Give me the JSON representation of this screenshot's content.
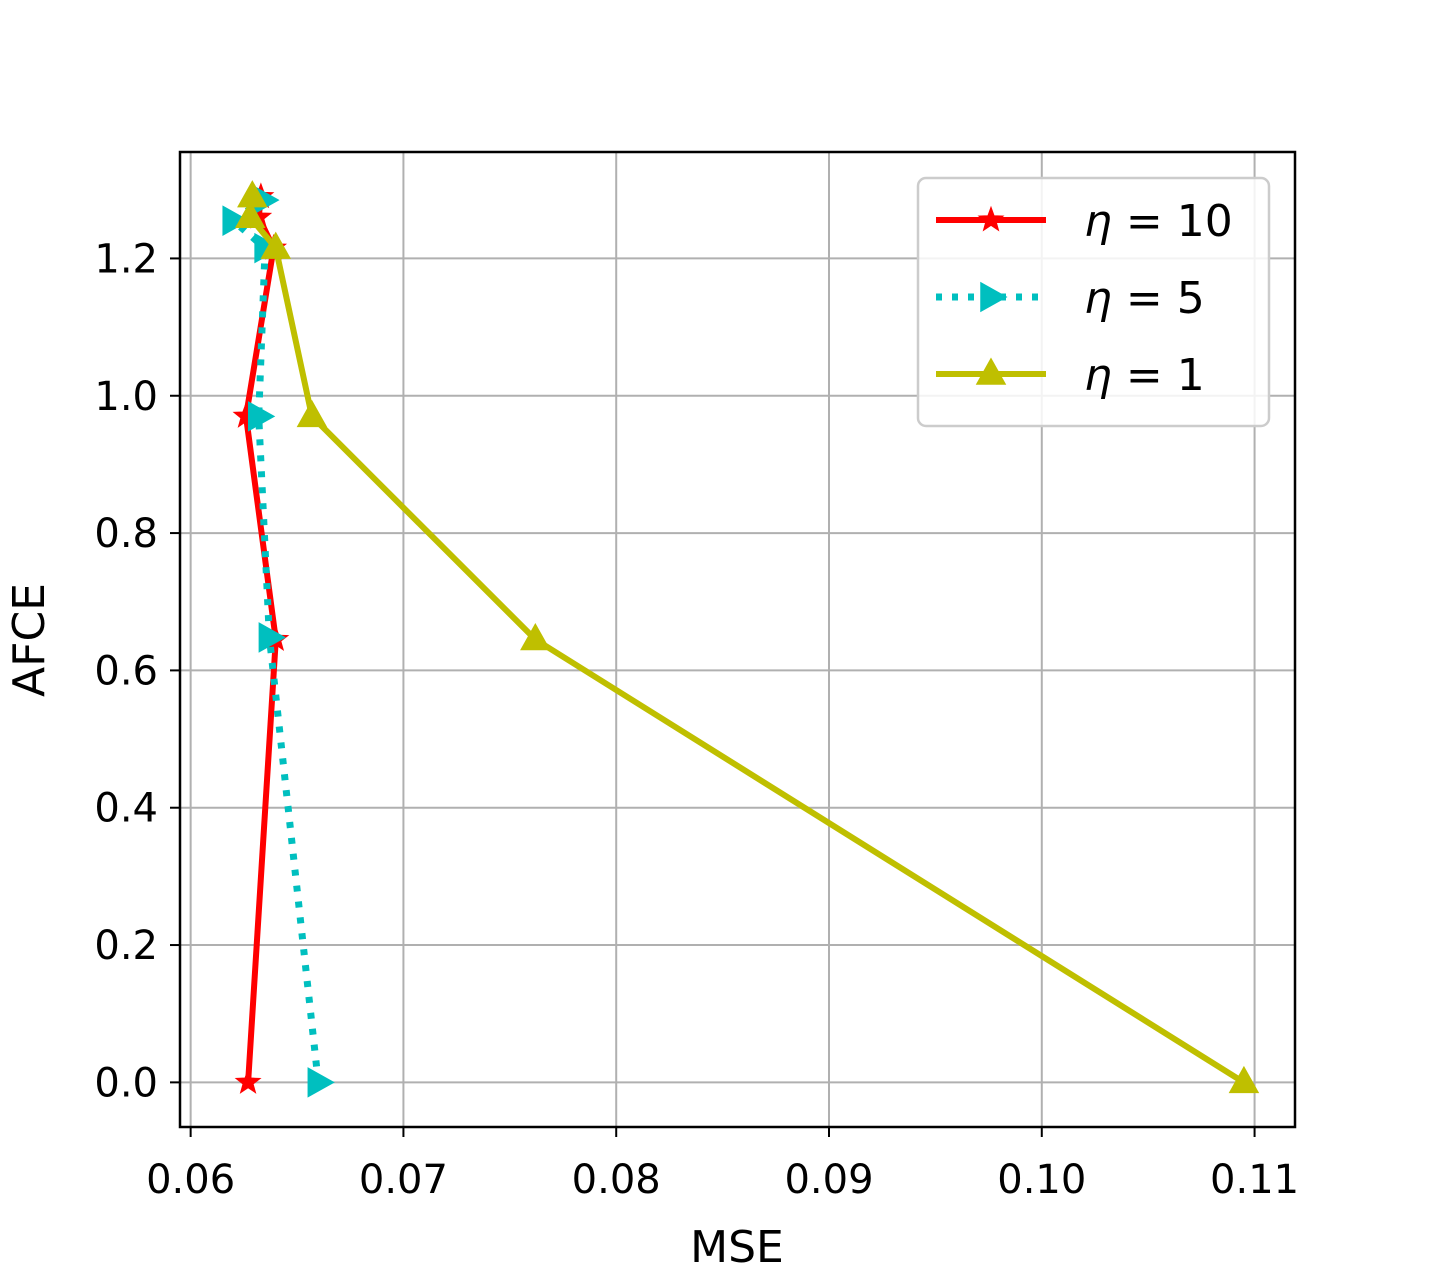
{
  "chart_data": {
    "type": "line",
    "title": "",
    "xlabel": "MSE",
    "ylabel": "AFCE",
    "xlim": [
      0.0595,
      0.1119
    ],
    "ylim": [
      -0.065,
      1.355
    ],
    "xticks": [
      0.06,
      0.07,
      0.08,
      0.09,
      0.1,
      0.11
    ],
    "xtick_labels": [
      "0.06",
      "0.07",
      "0.08",
      "0.09",
      "0.10",
      "0.11"
    ],
    "yticks": [
      0.0,
      0.2,
      0.4,
      0.6,
      0.8,
      1.0,
      1.2
    ],
    "ytick_labels": [
      "0.0",
      "0.2",
      "0.4",
      "0.6",
      "0.8",
      "1.0",
      "1.2"
    ],
    "grid": true,
    "legend_position": "top-right",
    "series": [
      {
        "name": "η = 10",
        "legend_sym": "η",
        "legend_eq": " = 10",
        "color": "#ff0000",
        "line_style": "solid",
        "marker": "star",
        "points": [
          [
            0.0627,
            0.0
          ],
          [
            0.064,
            0.645
          ],
          [
            0.0626,
            0.97
          ],
          [
            0.0639,
            1.215
          ],
          [
            0.0632,
            1.26
          ],
          [
            0.0633,
            1.29
          ]
        ]
      },
      {
        "name": "η = 5",
        "legend_sym": "η",
        "legend_eq": " = 5",
        "color": "#00bfbf",
        "line_style": "dotted",
        "marker": "triangle-right",
        "points": [
          [
            0.066,
            0.0
          ],
          [
            0.0637,
            0.648
          ],
          [
            0.0632,
            0.97
          ],
          [
            0.0635,
            1.215
          ],
          [
            0.062,
            1.255
          ],
          [
            0.0634,
            1.285
          ]
        ]
      },
      {
        "name": "η = 1",
        "legend_sym": "η",
        "legend_eq": " = 1",
        "color": "#bfbf00",
        "line_style": "solid",
        "marker": "triangle-up",
        "points": [
          [
            0.1095,
            0.0
          ],
          [
            0.0762,
            0.645
          ],
          [
            0.0657,
            0.97
          ],
          [
            0.064,
            1.215
          ],
          [
            0.0628,
            1.26
          ],
          [
            0.0629,
            1.29
          ]
        ]
      }
    ]
  }
}
